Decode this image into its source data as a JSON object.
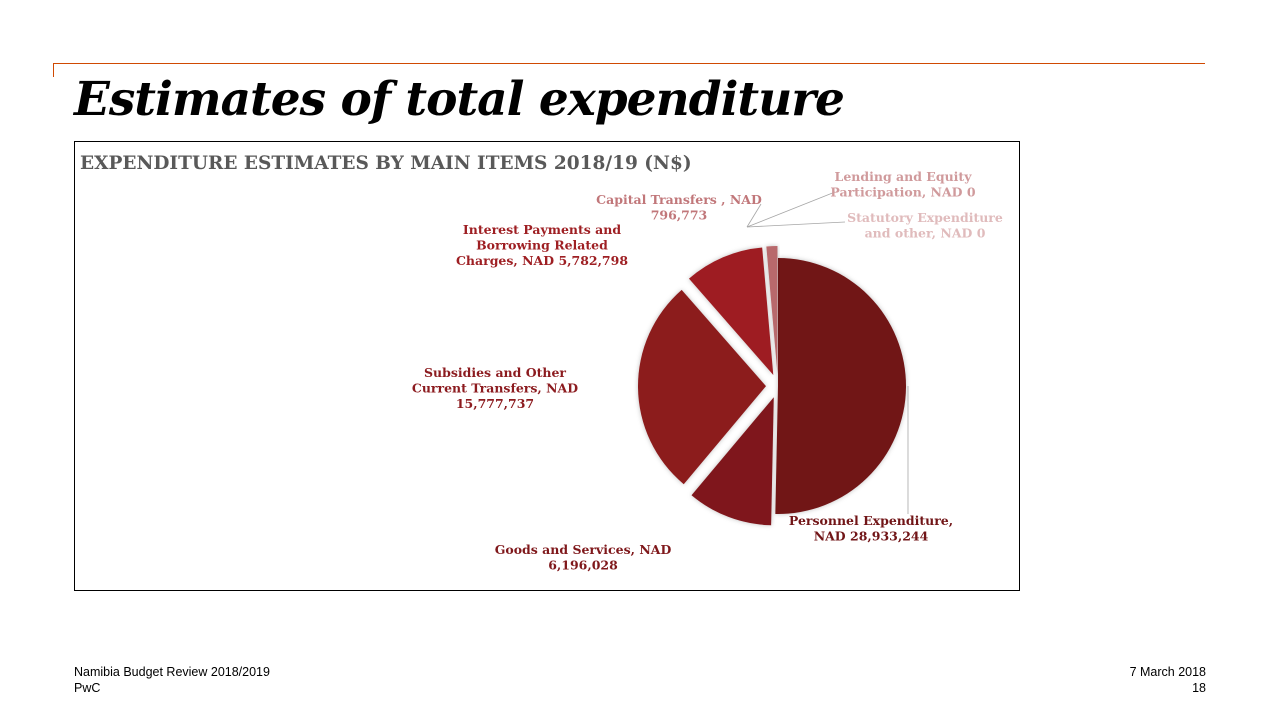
{
  "slide": {
    "title": "Estimates of total expenditure",
    "footer_left_line1": "Namibia Budget Review 2018/2019",
    "footer_left_line2": "PwC",
    "footer_date": "7 March 2018",
    "page_number": "18"
  },
  "colors": {
    "accent_rule": "#d04a02",
    "title_gray": "#595959"
  },
  "chart_data": {
    "type": "pie",
    "title": "EXPENDITURE ESTIMATES BY MAIN ITEMS 2018/19 (N$)",
    "unit": "N$",
    "slices": [
      {
        "name": "Personnel Expenditure",
        "value": 28933244,
        "color": "#711517",
        "label_color": "#711517",
        "label_lines": [
          "Personnel Expenditure,",
          "NAD 28,933,244"
        ]
      },
      {
        "name": "Goods and Services",
        "value": 6196028,
        "color": "#7f181b",
        "label_color": "#7f181b",
        "label_lines": [
          "Goods and Services, NAD",
          "6,196,028"
        ]
      },
      {
        "name": "Subsidies and Other Current Transfers",
        "value": 15777737,
        "color": "#8c1b1f",
        "label_color": "#8c1b1f",
        "label_lines": [
          "Subsidies and Other",
          "Current Transfers, NAD",
          "15,777,737"
        ]
      },
      {
        "name": "Interest Payments and Borrowing Related Charges",
        "value": 5782798,
        "color": "#9e1f23",
        "label_color": "#9e1f23",
        "label_lines": [
          "Interest Payments and",
          "Borrowing Related",
          "Charges, NAD 5,782,798"
        ]
      },
      {
        "name": "Capital Transfers",
        "value": 796773,
        "color": "#b8696c",
        "label_color": "#c1777a",
        "label_lines": [
          "Capital Transfers , NAD",
          "796,773"
        ]
      },
      {
        "name": "Lending and Equity Participation",
        "value": 0,
        "color": "#d09a9c",
        "label_color": "#d09a9c",
        "label_lines": [
          "Lending and Equity",
          "Participation, NAD 0"
        ]
      },
      {
        "name": "Statutory Expenditure and other",
        "value": 0,
        "color": "#e0bbbc",
        "label_color": "#e0bbbc",
        "label_lines": [
          "Statutory Expenditure",
          "and other, NAD 0"
        ]
      }
    ],
    "legend": "none"
  }
}
